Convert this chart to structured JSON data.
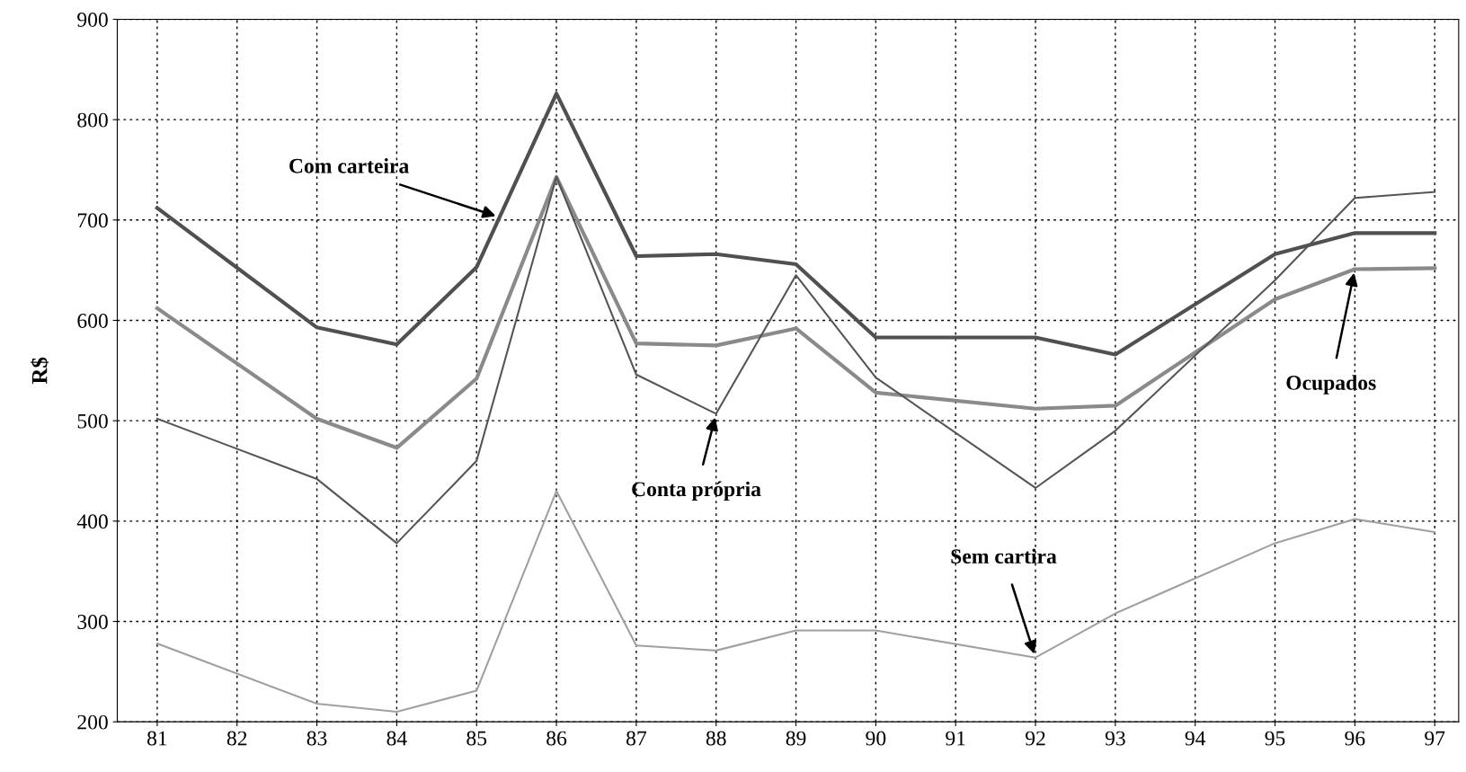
{
  "chart_data": {
    "type": "line",
    "ylabel": "R$",
    "xlim": [
      80.5,
      97.3
    ],
    "xticks": [
      81,
      82,
      83,
      84,
      85,
      86,
      87,
      88,
      89,
      90,
      91,
      92,
      93,
      94,
      95,
      96,
      97
    ],
    "ylim": [
      200,
      900
    ],
    "yticks": [
      200,
      300,
      400,
      500,
      600,
      700,
      800,
      900
    ],
    "grid": true,
    "legend": false,
    "series": [
      {
        "color": "#505050",
        "x": [
          81,
          83,
          84,
          85,
          86,
          87,
          88,
          89,
          90,
          92,
          93,
          95,
          96,
          97
        ],
        "values": [
          712,
          593,
          576,
          653,
          826,
          664,
          666,
          656,
          583,
          583,
          566,
          666,
          687,
          687
        ]
      },
      {
        "color": "#8a8a8a",
        "x": [
          81,
          83,
          84,
          85,
          86,
          87,
          88,
          89,
          90,
          92,
          93,
          95,
          96,
          97
        ],
        "values": [
          612,
          502,
          473,
          542,
          743,
          577,
          575,
          592,
          528,
          512,
          515,
          621,
          651,
          652
        ]
      },
      {
        "color": "#555555",
        "x": [
          81,
          83,
          84,
          85,
          86,
          87,
          88,
          89,
          90,
          92,
          93,
          95,
          96,
          97
        ],
        "values": [
          502,
          442,
          378,
          460,
          743,
          546,
          507,
          645,
          543,
          433,
          490,
          640,
          722,
          728
        ]
      },
      {
        "color": "#a0a0a0",
        "x": [
          81,
          83,
          84,
          85,
          86,
          87,
          88,
          89,
          90,
          92,
          93,
          95,
          96,
          97
        ],
        "values": [
          278,
          218,
          210,
          231,
          430,
          276,
          271,
          291,
          291,
          264,
          308,
          378,
          402,
          389
        ]
      }
    ],
    "annotations": [
      {
        "text": "Com carteira",
        "x": 85.24,
        "y": 704
      },
      {
        "text": "Conta própria",
        "x": 88,
        "y": 507
      },
      {
        "text": "Sem cartira",
        "x": 92,
        "y": 264
      },
      {
        "text": "Ocupados",
        "x": 96,
        "y": 651
      }
    ]
  }
}
